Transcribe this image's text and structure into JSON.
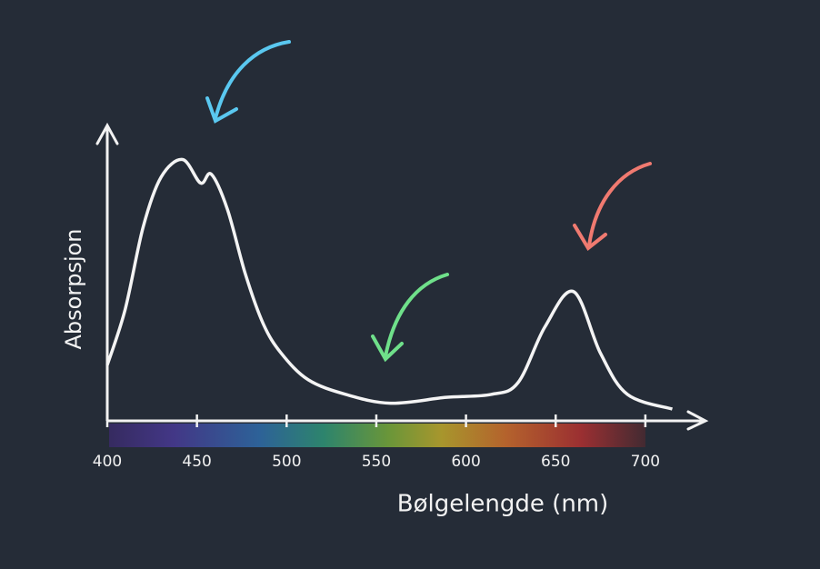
{
  "chart_data": {
    "type": "line",
    "x_label": "Bølgelengde (nm)",
    "y_label": "Absorpsjon",
    "x": [
      400,
      410,
      420,
      430,
      442,
      452,
      458,
      467,
      477,
      487,
      497,
      512,
      533,
      558,
      589,
      614,
      629,
      644,
      660,
      675,
      690,
      715
    ],
    "series": [
      {
        "color": "#f4f4f4",
        "values": [
          0.19,
          0.38,
          0.66,
          0.83,
          0.89,
          0.81,
          0.84,
          0.72,
          0.5,
          0.33,
          0.23,
          0.14,
          0.09,
          0.06,
          0.08,
          0.09,
          0.13,
          0.32,
          0.44,
          0.23,
          0.09,
          0.04
        ]
      }
    ],
    "xlim": [
      400,
      733
    ],
    "ylim": [
      0,
      1
    ],
    "xticks": [
      400,
      450,
      500,
      550,
      600,
      650,
      700
    ]
  }
}
